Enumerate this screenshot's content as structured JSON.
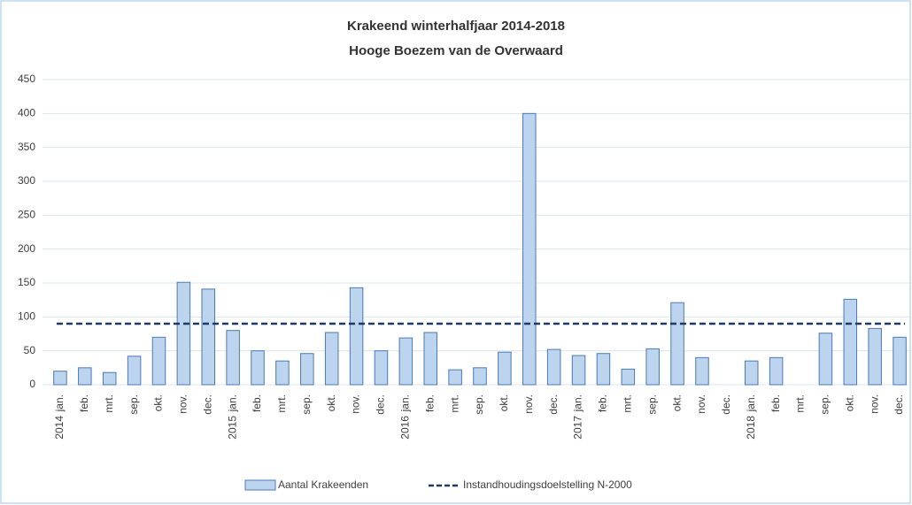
{
  "chart_data": {
    "type": "bar",
    "title": "Krakeend winterhalfjaar 2014-2018",
    "subtitle": "Hooge Boezem van de Overwaard",
    "categories": [
      "jan.",
      "feb.",
      "mrt.",
      "sep.",
      "okt.",
      "nov.",
      "dec.",
      "jan.",
      "feb.",
      "mrt.",
      "sep.",
      "okt.",
      "nov.",
      "dec.",
      "jan.",
      "feb.",
      "mrt.",
      "sep.",
      "okt.",
      "nov.",
      "dec.",
      "jan.",
      "feb.",
      "mrt.",
      "sep.",
      "okt.",
      "nov.",
      "dec.",
      "jan.",
      "feb.",
      "mrt.",
      "sep.",
      "okt.",
      "nov.",
      "dec."
    ],
    "years": [
      "2014",
      null,
      null,
      null,
      null,
      null,
      null,
      "2015",
      null,
      null,
      null,
      null,
      null,
      null,
      "2016",
      null,
      null,
      null,
      null,
      null,
      null,
      "2017",
      null,
      null,
      null,
      null,
      null,
      null,
      "2018",
      null,
      null,
      null,
      null,
      null,
      null
    ],
    "series": [
      {
        "name": "Aantal Krakeenden",
        "color": "#bcd4ee",
        "values": [
          20,
          25,
          18,
          42,
          70,
          151,
          141,
          80,
          50,
          35,
          46,
          77,
          143,
          50,
          69,
          77,
          22,
          25,
          48,
          400,
          52,
          43,
          46,
          23,
          53,
          121,
          40,
          null,
          35,
          40,
          null,
          76,
          126,
          83,
          70
        ]
      }
    ],
    "target_line": {
      "name": "Instandhoudingsdoelstelling N-2000",
      "value": 90,
      "color": "#1f3864"
    },
    "ylim": [
      0,
      450
    ],
    "yticks": [
      0,
      50,
      100,
      150,
      200,
      250,
      300,
      350,
      400,
      450
    ],
    "grid": true
  }
}
